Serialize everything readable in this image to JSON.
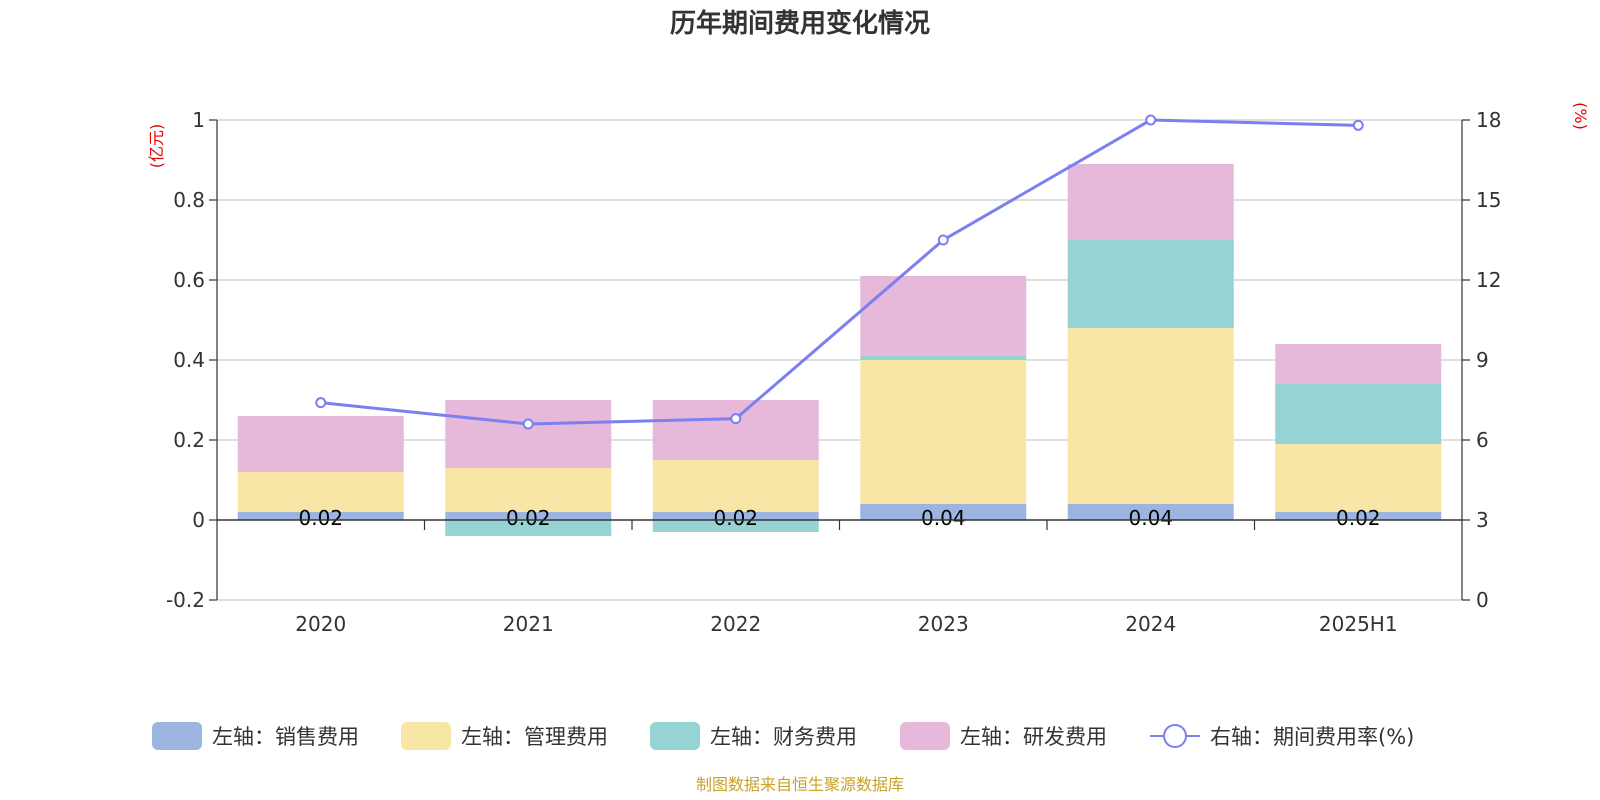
{
  "chart_data": {
    "type": "bar",
    "title": "历年期间费用变化情况",
    "categories": [
      "2020",
      "2021",
      "2022",
      "2023",
      "2024",
      "2025H1"
    ],
    "left_axis": {
      "unit": "(亿元)",
      "ylim": [
        -0.2,
        1
      ],
      "ticks": [
        "-0.2",
        "0",
        "0.2",
        "0.4",
        "0.6",
        "0.8",
        "1"
      ]
    },
    "right_axis": {
      "unit": "(%)",
      "ylim": [
        0,
        18
      ],
      "ticks": [
        "0",
        "3",
        "6",
        "9",
        "12",
        "15",
        "18"
      ]
    },
    "series": [
      {
        "name": "左轴：销售费用",
        "axis": "left",
        "kind": "bar",
        "color": "#9bb5e0",
        "values": [
          0.02,
          0.02,
          0.02,
          0.04,
          0.04,
          0.02
        ],
        "labels": [
          "0.02",
          "0.02",
          "0.02",
          "0.04",
          "0.04",
          "0.02"
        ]
      },
      {
        "name": "左轴：管理费用",
        "axis": "left",
        "kind": "bar",
        "color": "#f7e6a6",
        "values": [
          0.1,
          0.11,
          0.13,
          0.36,
          0.44,
          0.17
        ]
      },
      {
        "name": "左轴：财务费用",
        "axis": "left",
        "kind": "bar",
        "color": "#96d3d4",
        "values": [
          0.0,
          -0.04,
          -0.03,
          0.01,
          0.22,
          0.15
        ]
      },
      {
        "name": "左轴：研发费用",
        "axis": "left",
        "kind": "bar",
        "color": "#e6b8d9",
        "values": [
          0.14,
          0.17,
          0.15,
          0.2,
          0.19,
          0.1
        ]
      },
      {
        "name": "右轴：期间费用率(%)",
        "axis": "right",
        "kind": "line",
        "color": "#7b7ff0",
        "values": [
          7.4,
          6.6,
          6.8,
          13.5,
          18.0,
          17.8
        ]
      }
    ],
    "grid": true,
    "legend_position": "bottom"
  },
  "footer": {
    "source": "制图数据来自恒生聚源数据库"
  }
}
